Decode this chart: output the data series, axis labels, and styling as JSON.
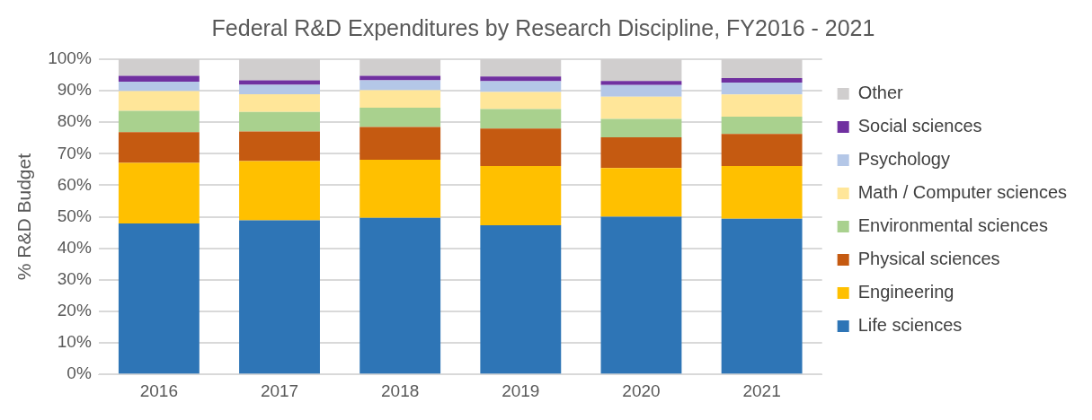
{
  "chart_data": {
    "type": "bar",
    "title": "Federal R&D Expenditures by Research Discipline, FY2016 - 2021",
    "ylabel": "% R&D Budget",
    "categories": [
      "2016",
      "2017",
      "2018",
      "2019",
      "2020",
      "2021"
    ],
    "stacked": true,
    "ylim": [
      0,
      100
    ],
    "yticks": [
      {
        "value": 0,
        "label": "0%"
      },
      {
        "value": 10,
        "label": "10%"
      },
      {
        "value": 20,
        "label": "20%"
      },
      {
        "value": 30,
        "label": "30%"
      },
      {
        "value": 40,
        "label": "40%"
      },
      {
        "value": 50,
        "label": "50%"
      },
      {
        "value": 60,
        "label": "60%"
      },
      {
        "value": 70,
        "label": "70%"
      },
      {
        "value": 80,
        "label": "80%"
      },
      {
        "value": 90,
        "label": "90%"
      },
      {
        "value": 100,
        "label": "100%"
      }
    ],
    "grid": "y",
    "legend": "right",
    "series": [
      {
        "name": "Life sciences",
        "color": "#2e75b6",
        "values": [
          47.9,
          48.9,
          49.7,
          47.3,
          50.0,
          49.4
        ]
      },
      {
        "name": "Engineering",
        "color": "#ffc000",
        "values": [
          19.2,
          18.8,
          18.4,
          18.8,
          15.5,
          16.7
        ]
      },
      {
        "name": "Physical sciences",
        "color": "#c55a11",
        "values": [
          9.8,
          9.4,
          10.4,
          11.9,
          9.7,
          10.2
        ]
      },
      {
        "name": "Environmental sciences",
        "color": "#a9d18e",
        "values": [
          6.7,
          6.2,
          6.1,
          6.2,
          5.9,
          5.5
        ]
      },
      {
        "name": "Math / Computer sciences",
        "color": "#ffe699",
        "values": [
          6.3,
          5.6,
          5.6,
          5.4,
          7.0,
          7.0
        ]
      },
      {
        "name": "Psychology",
        "color": "#b4c7e7",
        "values": [
          3.0,
          3.0,
          3.1,
          3.4,
          3.7,
          3.8
        ]
      },
      {
        "name": "Social sciences",
        "color": "#7030a0",
        "values": [
          1.8,
          1.4,
          1.4,
          1.5,
          1.3,
          1.4
        ]
      },
      {
        "name": "Other",
        "color": "#d0cece",
        "values": [
          5.3,
          6.7,
          5.3,
          5.5,
          6.9,
          6.0
        ]
      }
    ]
  }
}
